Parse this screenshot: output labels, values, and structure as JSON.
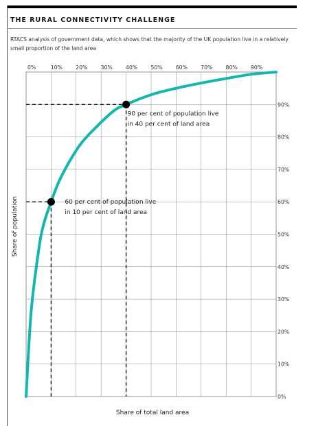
{
  "header": {
    "title": "THE RURAL CONNECTIVITY CHALLENGE",
    "subtitle": "RTACS analysis of government data, which shows that the majority of the UK population live in a relatively small proportion of the land area"
  },
  "colors": {
    "curve": "#13b7ae",
    "text": "#1a1a1a",
    "grid": "#888888"
  },
  "chart_data": {
    "type": "line",
    "xlabel": "Share of total land area",
    "ylabel": "Share of population",
    "xlim": [
      0,
      100
    ],
    "ylim": [
      0,
      100
    ],
    "x_ticks": [
      "0%",
      "10%",
      "20%",
      "30%",
      "40%",
      "50%",
      "60%",
      "70%",
      "80%",
      "90%"
    ],
    "y_ticks": [
      "0%",
      "10%",
      "20%",
      "30%",
      "40%",
      "50%",
      "60%",
      "70%",
      "80%",
      "90%"
    ],
    "grid": true,
    "series": [
      {
        "x": [
          0,
          2,
          5,
          7,
          10,
          13,
          17,
          22,
          28,
          35,
          40,
          50,
          60,
          70,
          80,
          90,
          100
        ],
        "y": [
          0,
          26,
          45,
          53,
          60,
          66,
          72,
          78,
          83,
          88,
          90,
          93,
          95,
          96.6,
          98,
          99.3,
          100
        ]
      }
    ],
    "annotations": [
      {
        "x": 10,
        "y": 60,
        "lines": [
          "60 per cent of population live",
          "in 10 per cent of land area"
        ]
      },
      {
        "x": 40,
        "y": 90,
        "lines": [
          "90 per cent of population live",
          "in 40 per cent of land area"
        ]
      }
    ]
  }
}
